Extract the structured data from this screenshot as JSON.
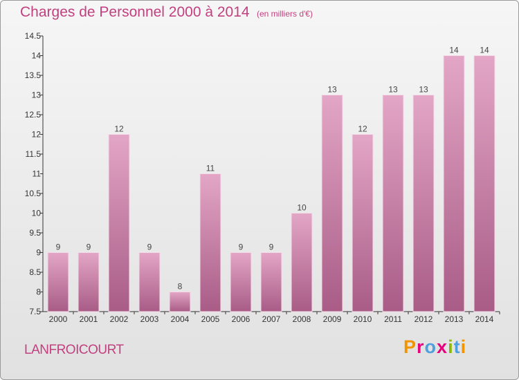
{
  "header": {
    "title": "Charges de Personnel 2000 à 2014",
    "unit": "(en milliers d'€)"
  },
  "footer": {
    "commune": "LANFROICOURT",
    "logo_text": "Proxiti",
    "logo_colors": [
      "#f29400",
      "#e6007e",
      "#4fa0dd",
      "#e6007e",
      "#8cb800",
      "#4fa0dd",
      "#f29400"
    ]
  },
  "colors": {
    "accent": "#c2407f",
    "bar_top": "#e3a6c6",
    "bar_bottom": "#a85c86"
  },
  "chart_data": {
    "type": "bar",
    "title": "Charges de Personnel 2000 à 2014",
    "categories": [
      "2000",
      "2001",
      "2002",
      "2003",
      "2004",
      "2005",
      "2006",
      "2007",
      "2008",
      "2009",
      "2010",
      "2011",
      "2012",
      "2013",
      "2014"
    ],
    "values": [
      9,
      9,
      12,
      9,
      8,
      11,
      9,
      9,
      10,
      13,
      12,
      13,
      13,
      14,
      14
    ],
    "value_labels": [
      "9",
      "9",
      "12",
      "9",
      "8",
      "11",
      "9",
      "9",
      "10",
      "13",
      "12",
      "13",
      "13",
      "14",
      "14"
    ],
    "ylim": [
      7.5,
      14.5
    ],
    "yticks": [
      7.5,
      8,
      8.5,
      9,
      9.5,
      10,
      10.5,
      11,
      11.5,
      12,
      12.5,
      13,
      13.5,
      14,
      14.5
    ],
    "ytick_labels": [
      "7.5",
      "8",
      "8.5",
      "9",
      "9.5",
      "10",
      "10.5",
      "11",
      "11.5",
      "12",
      "12.5",
      "13",
      "13.5",
      "14",
      "14.5"
    ],
    "xlabel": "",
    "ylabel": "",
    "grid": false,
    "legend": "none"
  }
}
